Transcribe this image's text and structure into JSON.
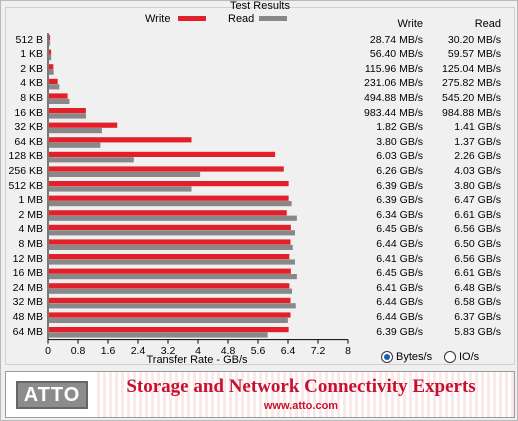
{
  "header": {
    "title": "Test Results",
    "write_label": "Write",
    "read_label": "Read"
  },
  "columns": {
    "write": "Write",
    "read": "Read"
  },
  "colors": {
    "write": "#e3202a",
    "read": "#888888",
    "grid": "#000000"
  },
  "chart_data": {
    "type": "bar",
    "orientation": "horizontal",
    "title": "Test Results",
    "xlabel": "Transfer Rate - GB/s",
    "xlim": [
      0,
      8
    ],
    "xticks": [
      "0",
      "0.8",
      "1.6",
      "2.4",
      "3.2",
      "4",
      "4.8",
      "5.6",
      "6.4",
      "7.2",
      "8"
    ],
    "categories": [
      "512 B",
      "1 KB",
      "2 KB",
      "4 KB",
      "8 KB",
      "16 KB",
      "32 KB",
      "64 KB",
      "128 KB",
      "256 KB",
      "512 KB",
      "1 MB",
      "2 MB",
      "4 MB",
      "8 MB",
      "12 MB",
      "16 MB",
      "24 MB",
      "32 MB",
      "48 MB",
      "64 MB"
    ],
    "series": [
      {
        "name": "Write",
        "values": [
          0.0287,
          0.0564,
          0.116,
          0.231,
          0.495,
          0.983,
          1.82,
          3.8,
          6.03,
          6.26,
          6.39,
          6.39,
          6.34,
          6.45,
          6.44,
          6.41,
          6.45,
          6.41,
          6.44,
          6.44,
          6.39
        ]
      },
      {
        "name": "Read",
        "values": [
          0.0302,
          0.0596,
          0.125,
          0.276,
          0.545,
          0.985,
          1.41,
          1.37,
          2.26,
          4.03,
          3.8,
          6.47,
          6.61,
          6.56,
          6.5,
          6.56,
          6.61,
          6.48,
          6.58,
          6.37,
          5.83
        ]
      }
    ],
    "write_text": [
      "28.74 MB/s",
      "56.40 MB/s",
      "115.96 MB/s",
      "231.06 MB/s",
      "494.88 MB/s",
      "983.44 MB/s",
      "1.82 GB/s",
      "3.80 GB/s",
      "6.03 GB/s",
      "6.26 GB/s",
      "6.39 GB/s",
      "6.39 GB/s",
      "6.34 GB/s",
      "6.45 GB/s",
      "6.44 GB/s",
      "6.41 GB/s",
      "6.45 GB/s",
      "6.41 GB/s",
      "6.44 GB/s",
      "6.44 GB/s",
      "6.39 GB/s"
    ],
    "read_text": [
      "30.20 MB/s",
      "59.57 MB/s",
      "125.04 MB/s",
      "275.82 MB/s",
      "545.20 MB/s",
      "984.88 MB/s",
      "1.41 GB/s",
      "1.37 GB/s",
      "2.26 GB/s",
      "4.03 GB/s",
      "3.80 GB/s",
      "6.47 GB/s",
      "6.61 GB/s",
      "6.56 GB/s",
      "6.50 GB/s",
      "6.56 GB/s",
      "6.61 GB/s",
      "6.48 GB/s",
      "6.58 GB/s",
      "6.37 GB/s",
      "5.83 GB/s"
    ]
  },
  "units": {
    "bytes_label": "Bytes/s",
    "io_label": "IO/s",
    "selected": "Bytes/s"
  },
  "banner": {
    "logo": "ATTO",
    "tagline": "Storage and Network Connectivity Experts",
    "url": "www.atto.com"
  }
}
